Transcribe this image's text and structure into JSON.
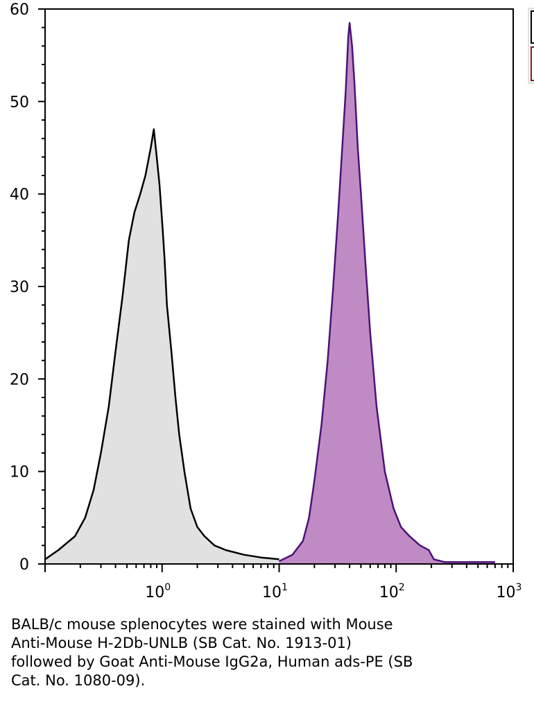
{
  "chart_data": {
    "type": "area",
    "x_scale": "log",
    "xlim": [
      0.1,
      1000
    ],
    "ylim": [
      0,
      60
    ],
    "x_tick_labels": [
      {
        "value": 1,
        "base": "10",
        "exp": "0"
      },
      {
        "value": 10,
        "base": "10",
        "exp": "1"
      },
      {
        "value": 100,
        "base": "10",
        "exp": "2"
      },
      {
        "value": 1000,
        "base": "10",
        "exp": "3"
      }
    ],
    "y_ticks": [
      "0",
      "10",
      "20",
      "30",
      "40",
      "50",
      "60"
    ],
    "grid": false,
    "legend_position": "top-right (cropped)",
    "series": [
      {
        "fill": "#e1e1e1",
        "stroke": "#000000",
        "points": [
          [
            0.1,
            0.5
          ],
          [
            0.13,
            1.5
          ],
          [
            0.18,
            3
          ],
          [
            0.22,
            5
          ],
          [
            0.26,
            8
          ],
          [
            0.3,
            12
          ],
          [
            0.35,
            17
          ],
          [
            0.4,
            23
          ],
          [
            0.46,
            29
          ],
          [
            0.52,
            35
          ],
          [
            0.58,
            38
          ],
          [
            0.65,
            40
          ],
          [
            0.72,
            42
          ],
          [
            0.8,
            45
          ],
          [
            0.85,
            47
          ],
          [
            0.9,
            44
          ],
          [
            0.95,
            41
          ],
          [
            1.0,
            37
          ],
          [
            1.05,
            33
          ],
          [
            1.1,
            28
          ],
          [
            1.2,
            23
          ],
          [
            1.3,
            18
          ],
          [
            1.4,
            14
          ],
          [
            1.55,
            10
          ],
          [
            1.75,
            6
          ],
          [
            2.0,
            4
          ],
          [
            2.3,
            3
          ],
          [
            2.8,
            2
          ],
          [
            3.5,
            1.5
          ],
          [
            5,
            1
          ],
          [
            7,
            0.7
          ],
          [
            10,
            0.5
          ]
        ]
      },
      {
        "fill": "#c08bc4",
        "stroke": "#4a1278",
        "points": [
          [
            10,
            0.3
          ],
          [
            13,
            1
          ],
          [
            16,
            2.5
          ],
          [
            18,
            5
          ],
          [
            20,
            9
          ],
          [
            23,
            15
          ],
          [
            26,
            22
          ],
          [
            29,
            30
          ],
          [
            32,
            38
          ],
          [
            35,
            46
          ],
          [
            37,
            51
          ],
          [
            39,
            57
          ],
          [
            40,
            58.5
          ],
          [
            42,
            56
          ],
          [
            44,
            52
          ],
          [
            47,
            45
          ],
          [
            50,
            40
          ],
          [
            55,
            32
          ],
          [
            60,
            25
          ],
          [
            68,
            17
          ],
          [
            80,
            10
          ],
          [
            95,
            6
          ],
          [
            110,
            4
          ],
          [
            130,
            3
          ],
          [
            160,
            2
          ],
          [
            190,
            1.5
          ],
          [
            210,
            0.5
          ],
          [
            260,
            0.2
          ],
          [
            700,
            0.2
          ]
        ]
      }
    ],
    "caption": "BALB/c mouse splenocytes were stained with Mouse\nAnti-Mouse H-2Db-UNLB (SB Cat. No. 1913-01)\nfollowed by Goat Anti-Mouse IgG2a, Human ads-PE (SB\nCat. No. 1080-09).",
    "colors": {
      "control_fill": "#e1e1e1",
      "control_line": "#000000",
      "stained_fill": "#c08bc4",
      "stained_line": "#4a1278",
      "legend_red": "#8b1a1a"
    }
  }
}
